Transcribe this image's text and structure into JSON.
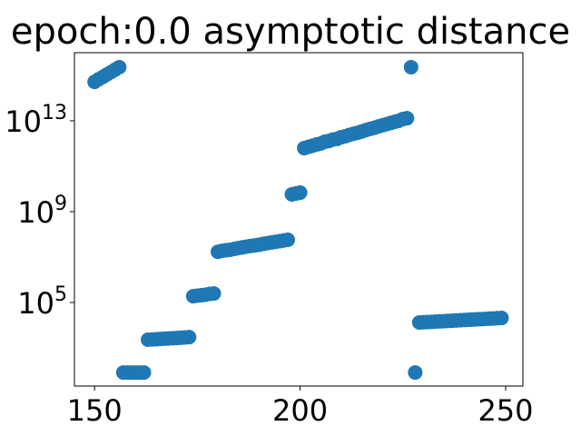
{
  "chart_data": {
    "type": "scatter",
    "title": "epoch:0.0 asymptotic distance",
    "x": [
      150,
      151,
      152,
      153,
      154,
      155,
      156,
      157,
      158,
      159,
      160,
      161,
      162,
      163,
      164,
      165,
      166,
      167,
      168,
      169,
      170,
      171,
      172,
      173,
      174,
      175,
      176,
      177,
      178,
      179,
      180,
      181,
      182,
      183,
      184,
      185,
      186,
      187,
      188,
      189,
      190,
      191,
      192,
      193,
      194,
      195,
      196,
      197,
      198,
      199,
      200,
      201,
      202,
      203,
      204,
      205,
      206,
      207,
      208,
      209,
      210,
      211,
      212,
      213,
      214,
      215,
      216,
      217,
      218,
      219,
      220,
      221,
      222,
      223,
      224,
      225,
      226,
      227,
      228,
      229,
      230,
      231,
      232,
      233,
      234,
      235,
      236,
      237,
      238,
      239,
      240,
      241,
      242,
      243,
      244,
      245,
      246,
      247,
      248,
      249
    ],
    "values": [
      520000000000000.0,
      680000000000000.0,
      850000000000000.0,
      1100000000000000.0,
      1400000000000000.0,
      1800000000000000.0,
      2300000000000000.0,
      83,
      83,
      83,
      83,
      83,
      83,
      2300,
      2360,
      2420,
      2490,
      2550,
      2610,
      2680,
      2750,
      2820,
      2890,
      3000,
      190000.0,
      200000.0,
      210000.0,
      220000.0,
      240000.0,
      250000.0,
      17000000.0,
      19000000.0,
      20000000.0,
      21000000.0,
      23000000.0,
      25000000.0,
      27000000.0,
      29000000.0,
      31000000.0,
      33000000.0,
      35000000.0,
      38000000.0,
      41000000.0,
      44000000.0,
      47000000.0,
      50000000.0,
      54000000.0,
      58000000.0,
      5800000000.0,
      6300000000.0,
      6900000000.0,
      630000000000.0,
      710000000000.0,
      800000000000.0,
      910000000000.0,
      1000000000000.0,
      1200000000000.0,
      1300000000000.0,
      1500000000000.0,
      1600000000000.0,
      1900000000000.0,
      2100000000000.0,
      2400000000000.0,
      2700000000000.0,
      3000000000000.0,
      3400000000000.0,
      3900000000000.0,
      4400000000000.0,
      4900000000000.0,
      5600000000000.0,
      6300000000000.0,
      7100000000000.0,
      8000000000000.0,
      9000000000000.0,
      10000000000000.0,
      12000000000000.0,
      13000000000000.0,
      2300000000000000.0,
      83,
      13200,
      13500,
      13800,
      14100,
      14500,
      14800,
      15100,
      15500,
      15800,
      16200,
      16600,
      17000,
      17400,
      17800,
      18200,
      18600,
      19000,
      19500,
      19900,
      20400,
      20900
    ],
    "color": "#1f77b4",
    "log_y": true,
    "xlim": [
      145.1,
      254.2
    ],
    "xticks": [
      150,
      200,
      250
    ],
    "ylim": [
      21,
      1e+16
    ],
    "yticks": [
      {
        "value": 100000,
        "label": "10^5"
      },
      {
        "value": 1000000000,
        "label": "10^9"
      },
      {
        "value": 10000000000000,
        "label": "10^13"
      }
    ]
  }
}
